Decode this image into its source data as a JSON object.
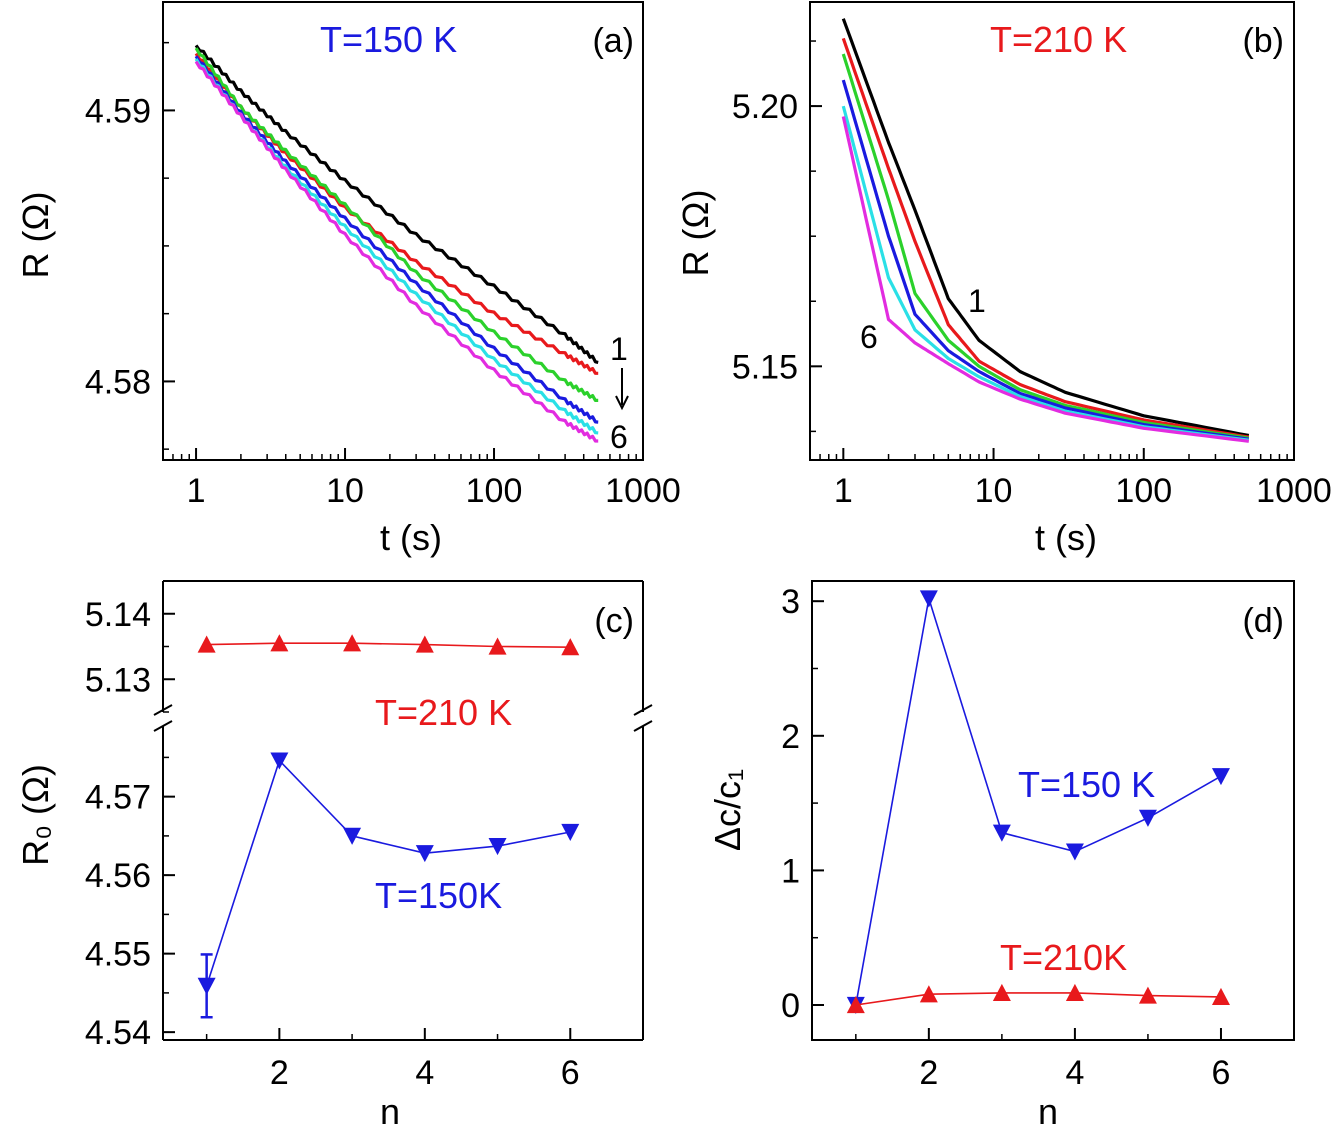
{
  "colors": {
    "black": "#000000",
    "red": "#e8191c",
    "green": "#2bd12b",
    "blue": "#1a1adf",
    "cyan": "#2ae0e6",
    "magenta": "#e22ce0"
  },
  "chart_data": [
    {
      "id": "a",
      "type": "line",
      "panel_label": "(a)",
      "annotation": "T=150 K",
      "xlabel": "t (s)",
      "ylabel": "R (Ω)",
      "xscale": "log",
      "xlim": [
        0.6,
        1000
      ],
      "ylim": [
        4.5771,
        4.594
      ],
      "xticks": [
        1,
        10,
        100,
        1000
      ],
      "xtick_labels": [
        "1",
        "10",
        "100",
        "1000"
      ],
      "yticks": [
        4.58,
        4.59
      ],
      "ytick_labels": [
        "4.58",
        "4.59"
      ],
      "curve_labels": {
        "first": "1",
        "last": "6"
      },
      "series": [
        {
          "color": "black",
          "x": [
            1,
            2,
            4,
            10,
            30,
            100,
            300,
            500
          ],
          "y": [
            4.5924,
            4.5907,
            4.5892,
            4.5874,
            4.5854,
            4.5835,
            4.5817,
            4.5807
          ]
        },
        {
          "color": "red",
          "x": [
            1,
            2,
            4,
            10,
            30,
            100,
            300,
            500
          ],
          "y": [
            4.5921,
            4.5901,
            4.5884,
            4.5864,
            4.5844,
            4.5825,
            4.581,
            4.5803
          ]
        },
        {
          "color": "green",
          "x": [
            1,
            2,
            4,
            10,
            30,
            100,
            300,
            500
          ],
          "y": [
            4.5923,
            4.5901,
            4.5885,
            4.5865,
            4.584,
            4.5818,
            4.58,
            4.5793
          ]
        },
        {
          "color": "blue",
          "x": [
            1,
            2,
            4,
            10,
            30,
            100,
            300,
            500
          ],
          "y": [
            4.592,
            4.5899,
            4.5881,
            4.586,
            4.5836,
            4.5812,
            4.5793,
            4.5785
          ]
        },
        {
          "color": "cyan",
          "x": [
            1,
            2,
            4,
            10,
            30,
            100,
            300,
            500
          ],
          "y": [
            4.5919,
            4.5898,
            4.5879,
            4.5857,
            4.5832,
            4.5808,
            4.5789,
            4.5781
          ]
        },
        {
          "color": "magenta",
          "x": [
            1,
            2,
            4,
            10,
            30,
            100,
            300,
            500
          ],
          "y": [
            4.5918,
            4.5898,
            4.5878,
            4.5854,
            4.5828,
            4.5804,
            4.5785,
            4.5778
          ]
        }
      ]
    },
    {
      "id": "b",
      "type": "line",
      "panel_label": "(b)",
      "annotation": "T=210 K",
      "xlabel": "t (s)",
      "ylabel": "R (Ω)",
      "xscale": "log",
      "xlim": [
        0.6,
        1000
      ],
      "ylim": [
        5.132,
        5.22
      ],
      "xticks": [
        1,
        10,
        100,
        1000
      ],
      "xtick_labels": [
        "1",
        "10",
        "100",
        "1000"
      ],
      "yticks": [
        5.15,
        5.2
      ],
      "ytick_labels": [
        "5.15",
        "5.20"
      ],
      "curve_labels": {
        "first": "1",
        "last": "6"
      },
      "series": [
        {
          "color": "black",
          "x": [
            1,
            2,
            3,
            5,
            8,
            15,
            30,
            100,
            500
          ],
          "y": [
            5.2168,
            5.193,
            5.18,
            5.163,
            5.155,
            5.149,
            5.145,
            5.1405,
            5.1367
          ]
        },
        {
          "color": "red",
          "x": [
            1,
            2,
            3,
            5,
            8,
            15,
            30,
            100,
            500
          ],
          "y": [
            5.213,
            5.188,
            5.174,
            5.158,
            5.151,
            5.1465,
            5.1432,
            5.1397,
            5.1364
          ]
        },
        {
          "color": "green",
          "x": [
            1,
            2,
            3,
            5,
            8,
            15,
            30,
            100,
            500
          ],
          "y": [
            5.21,
            5.182,
            5.164,
            5.155,
            5.15,
            5.1455,
            5.1425,
            5.1392,
            5.1362
          ]
        },
        {
          "color": "blue",
          "x": [
            1,
            2,
            3,
            5,
            8,
            15,
            30,
            100,
            500
          ],
          "y": [
            5.205,
            5.175,
            5.16,
            5.153,
            5.149,
            5.1448,
            5.142,
            5.1388,
            5.136
          ]
        },
        {
          "color": "cyan",
          "x": [
            1,
            2,
            3,
            5,
            8,
            15,
            30,
            100,
            500
          ],
          "y": [
            5.2,
            5.167,
            5.157,
            5.1515,
            5.148,
            5.1442,
            5.1414,
            5.1384,
            5.1358
          ]
        },
        {
          "color": "magenta",
          "x": [
            1,
            2,
            3,
            5,
            8,
            15,
            30,
            100,
            500
          ],
          "y": [
            5.198,
            5.159,
            5.1545,
            5.1505,
            5.147,
            5.1437,
            5.141,
            5.1381,
            5.1356
          ]
        }
      ]
    },
    {
      "id": "c",
      "type": "line",
      "panel_label": "(c)",
      "xlabel": "n",
      "ylabel": "R₀ (Ω)",
      "xlim": [
        0.4,
        7
      ],
      "xticks": [
        2,
        4,
        6
      ],
      "xtick_labels": [
        "2",
        "4",
        "6"
      ],
      "broken_yaxis": true,
      "upper_ylim": [
        5.125,
        5.145
      ],
      "upper_yticks": [
        5.13,
        5.14
      ],
      "upper_ytick_labels": [
        "5.13",
        "5.14"
      ],
      "lower_ylim": [
        4.539,
        4.579
      ],
      "lower_yticks": [
        4.54,
        4.55,
        4.56,
        4.57
      ],
      "lower_ytick_labels": [
        "4.54",
        "4.55",
        "4.56",
        "4.57"
      ],
      "series": [
        {
          "name": "T=210 K",
          "color": "red",
          "marker": "triangle-up",
          "segment": "upper",
          "x": [
            1,
            2,
            3,
            4,
            5,
            6
          ],
          "y": [
            5.1353,
            5.1355,
            5.1355,
            5.1353,
            5.135,
            5.1349
          ]
        },
        {
          "name": "T=150K",
          "color": "blue",
          "marker": "triangle-down",
          "segment": "lower",
          "x": [
            1,
            2,
            3,
            4,
            5,
            6
          ],
          "y": [
            4.5459,
            4.5746,
            4.565,
            4.5628,
            4.5637,
            4.5655
          ],
          "error": [
            4.0,
            0,
            0,
            0,
            0,
            0
          ],
          "error_scale": 0.001
        }
      ]
    },
    {
      "id": "d",
      "type": "line",
      "panel_label": "(d)",
      "xlabel": "n",
      "ylabel": "Δc/c₁",
      "xlim": [
        0.4,
        7
      ],
      "ylim": [
        -0.26,
        3.15
      ],
      "xticks": [
        2,
        4,
        6
      ],
      "xtick_labels": [
        "2",
        "4",
        "6"
      ],
      "yticks": [
        0,
        1,
        2,
        3
      ],
      "ytick_labels": [
        "0",
        "1",
        "2",
        "3"
      ],
      "series": [
        {
          "name": "T=150 K",
          "color": "blue",
          "marker": "triangle-down",
          "x": [
            1,
            2,
            3,
            4,
            5,
            6
          ],
          "y": [
            0.0,
            3.02,
            1.28,
            1.14,
            1.39,
            1.7
          ]
        },
        {
          "name": "T=210K",
          "color": "red",
          "marker": "triangle-up",
          "x": [
            1,
            2,
            3,
            4,
            5,
            6
          ],
          "y": [
            0.0,
            0.08,
            0.09,
            0.09,
            0.07,
            0.06
          ]
        }
      ]
    }
  ]
}
